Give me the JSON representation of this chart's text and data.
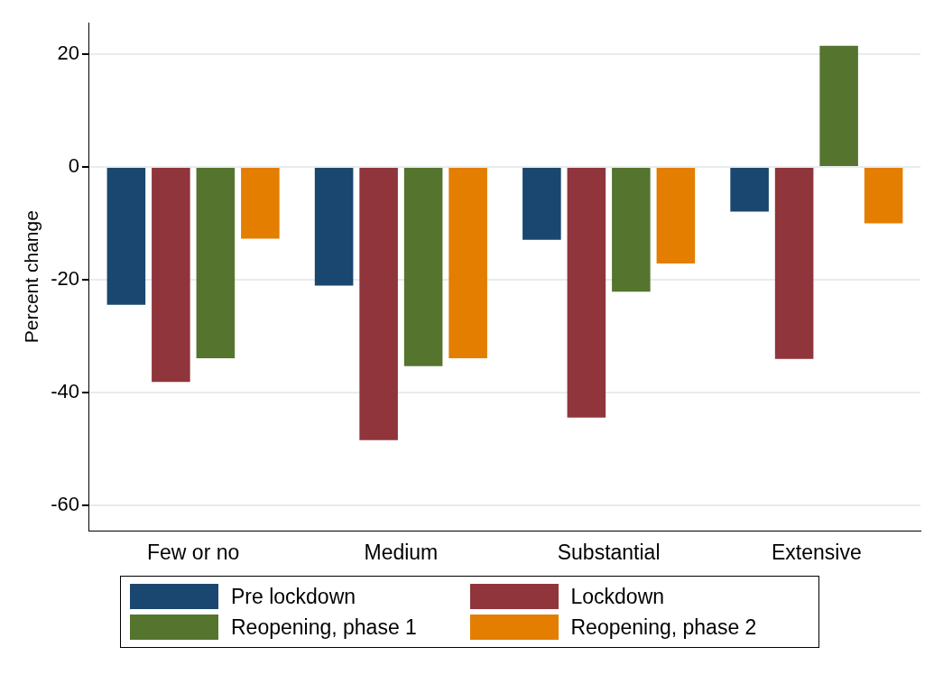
{
  "chart_data": {
    "type": "bar",
    "ylabel": "Percent change",
    "categories": [
      "Few or no",
      "Medium",
      "Substantial",
      "Extensive"
    ],
    "series": [
      {
        "name": "Pre lockdown",
        "color": "#1a476f",
        "values": [
          -24.4,
          -21.0,
          -12.9,
          -7.9
        ]
      },
      {
        "name": "Lockdown",
        "color": "#90353b",
        "values": [
          -38.1,
          -48.4,
          -44.4,
          -34.0
        ]
      },
      {
        "name": "Reopening, phase 1",
        "color": "#55752f",
        "values": [
          -33.9,
          -35.3,
          -22.1,
          21.5
        ]
      },
      {
        "name": "Reopening, phase 2",
        "color": "#e37e00",
        "values": [
          -12.7,
          -33.9,
          -17.1,
          -10.0
        ]
      }
    ],
    "ylim": [
      -64.5,
      25.6
    ],
    "yticks": [
      -60,
      -40,
      -20,
      0,
      20
    ],
    "grid": "y",
    "legend": "bottom"
  }
}
